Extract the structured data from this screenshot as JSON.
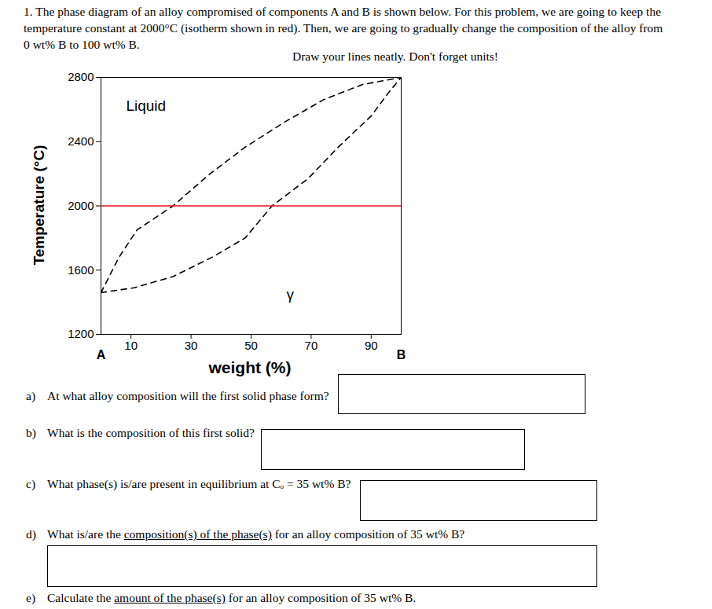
{
  "chart_data": {
    "type": "line",
    "x_label": "weight (%)",
    "y_label": "Temperature (°C)",
    "x_end_labels": [
      "A",
      "B"
    ],
    "xlim": [
      0,
      100
    ],
    "ylim": [
      1200,
      2800
    ],
    "xticks": [
      10,
      30,
      50,
      70,
      90
    ],
    "yticks": [
      1200,
      1600,
      2000,
      2400,
      2800
    ],
    "series": [
      {
        "color": "#000000",
        "line_style": "dashed",
        "x": [
          0,
          6,
          12,
          24,
          36,
          48,
          61,
          74,
          87,
          100
        ],
        "values": [
          1460,
          1680,
          1850,
          2000,
          2195,
          2365,
          2520,
          2660,
          2755,
          2800
        ]
      },
      {
        "color": "#000000",
        "line_style": "dashed",
        "x": [
          0,
          11,
          24,
          37,
          48,
          57,
          69,
          79,
          90,
          96,
          100
        ],
        "values": [
          1460,
          1490,
          1560,
          1680,
          1800,
          2000,
          2170,
          2365,
          2560,
          2710,
          2800
        ]
      },
      {
        "color": "#e8141b",
        "line_style": "solid",
        "x": [
          0,
          100
        ],
        "values": [
          2000,
          2000
        ]
      }
    ],
    "annotations": [
      {
        "text": "Liquid",
        "x": 15,
        "y": 2620
      },
      {
        "text": "γ",
        "x": 63,
        "y": 1450
      }
    ]
  },
  "document": {
    "problem": "1. The phase diagram of an alloy compromised of components A and B is shown below. For this problem, we are going to keep the temperature constant at 2000°C (isotherm shown in red). Then, we are going to gradually change the composition of the alloy from 0 wt% B to 100 wt% B.",
    "note": "Draw your lines neatly. Don't forget units!",
    "questions": [
      {
        "label": "a)",
        "text": "At what alloy composition will the first solid phase form?"
      },
      {
        "label": "b)",
        "text": "What is the composition of this first solid?"
      },
      {
        "label": "c)",
        "text": "What phase(s) is/are present in equilibrium at Cₒ = 35 wt% B?"
      },
      {
        "label": "d)",
        "text": "What is/are the composition(s) of the phase(s) for an alloy composition of 35 wt% B?",
        "underline": "composition(s) of the phase(s)"
      },
      {
        "label": "e)",
        "text": "Calculate the amount of the phase(s) for an alloy composition of 35 wt% B.",
        "underline": "amount of the phase(s)"
      }
    ]
  }
}
